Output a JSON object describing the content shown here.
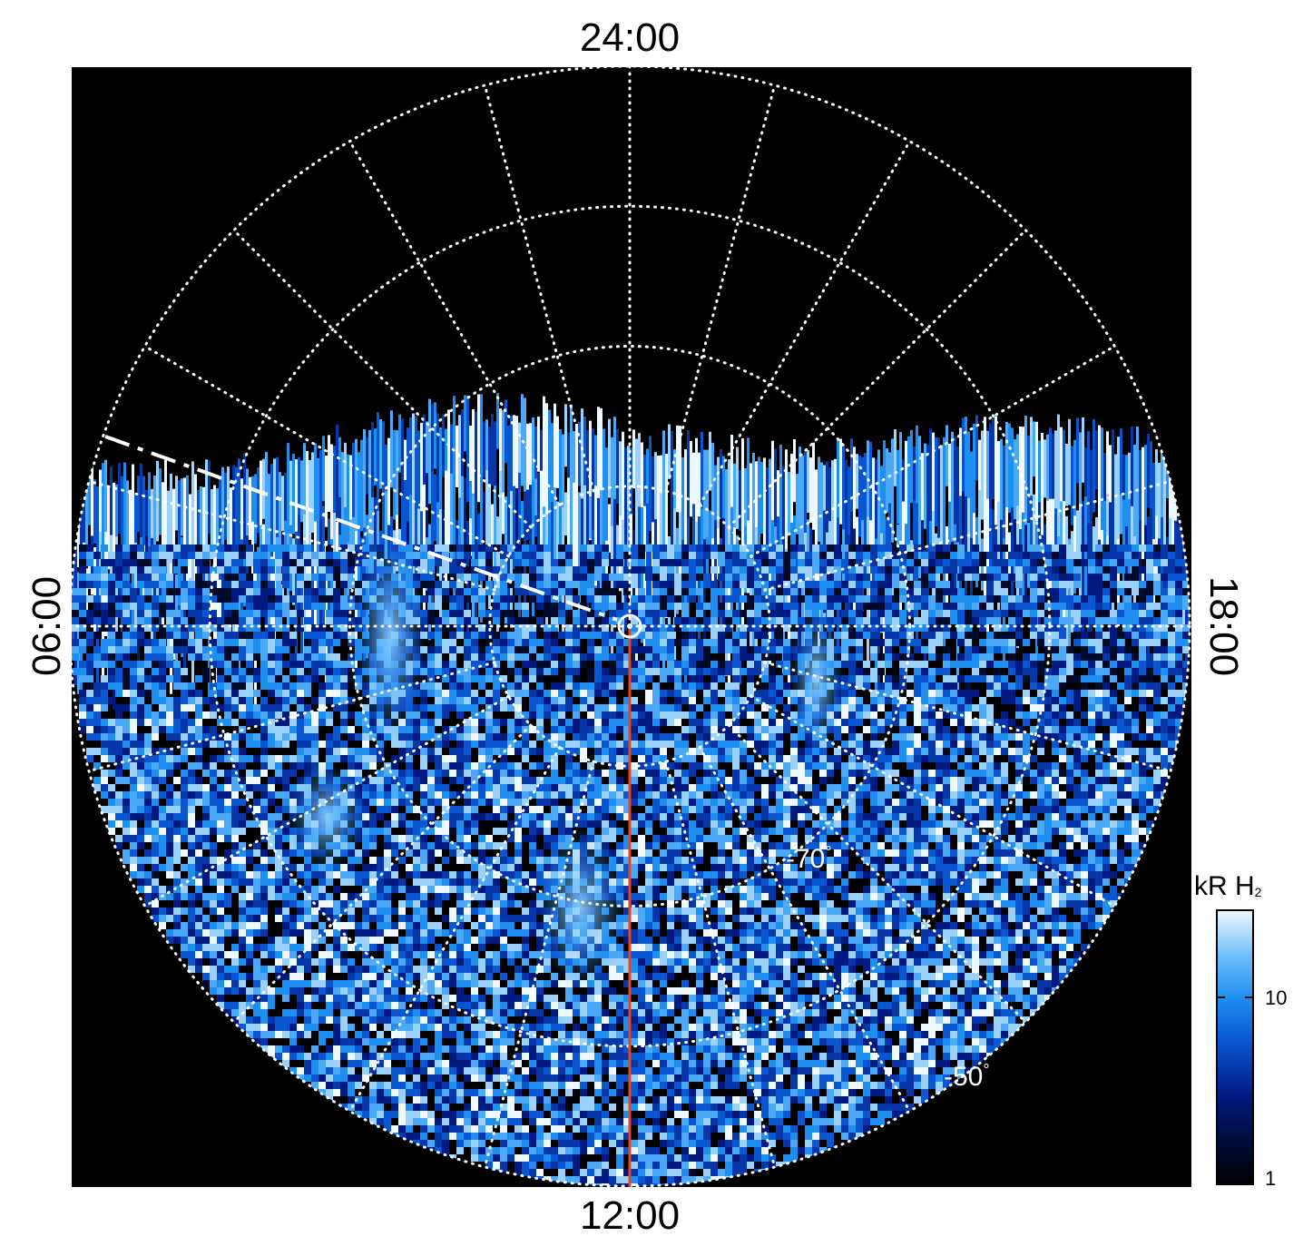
{
  "local_time_labels": {
    "top": "24:00",
    "bottom": "12:00",
    "left": "06:00",
    "right": "18:00"
  },
  "latitude_labels": {
    "inner": "-70",
    "outer": "-50",
    "degree_symbol": "°"
  },
  "colorbar": {
    "title_main": "kR H",
    "title_sub": "2",
    "tick_10": "10",
    "tick_1": "1",
    "scale": "log",
    "range": [
      1,
      30
    ],
    "colors": [
      "#000000",
      "#001a80",
      "#1e8ef0",
      "#eef8ff"
    ]
  },
  "colors": {
    "background": "#000000",
    "grid": "#ffffff",
    "meridian_line": "#e8451e",
    "emission": "#1e8ef0"
  },
  "grid": {
    "style": "dotted",
    "latitude_circles_deg": [
      -80,
      -70,
      -60,
      -50
    ],
    "meridian_spacing_hours": 1
  },
  "projection": {
    "pole_marker": "south pole (circled)",
    "boundary_latitude_deg": -50
  },
  "icons": {
    "pole_marker": "pole-circle-icon"
  }
}
